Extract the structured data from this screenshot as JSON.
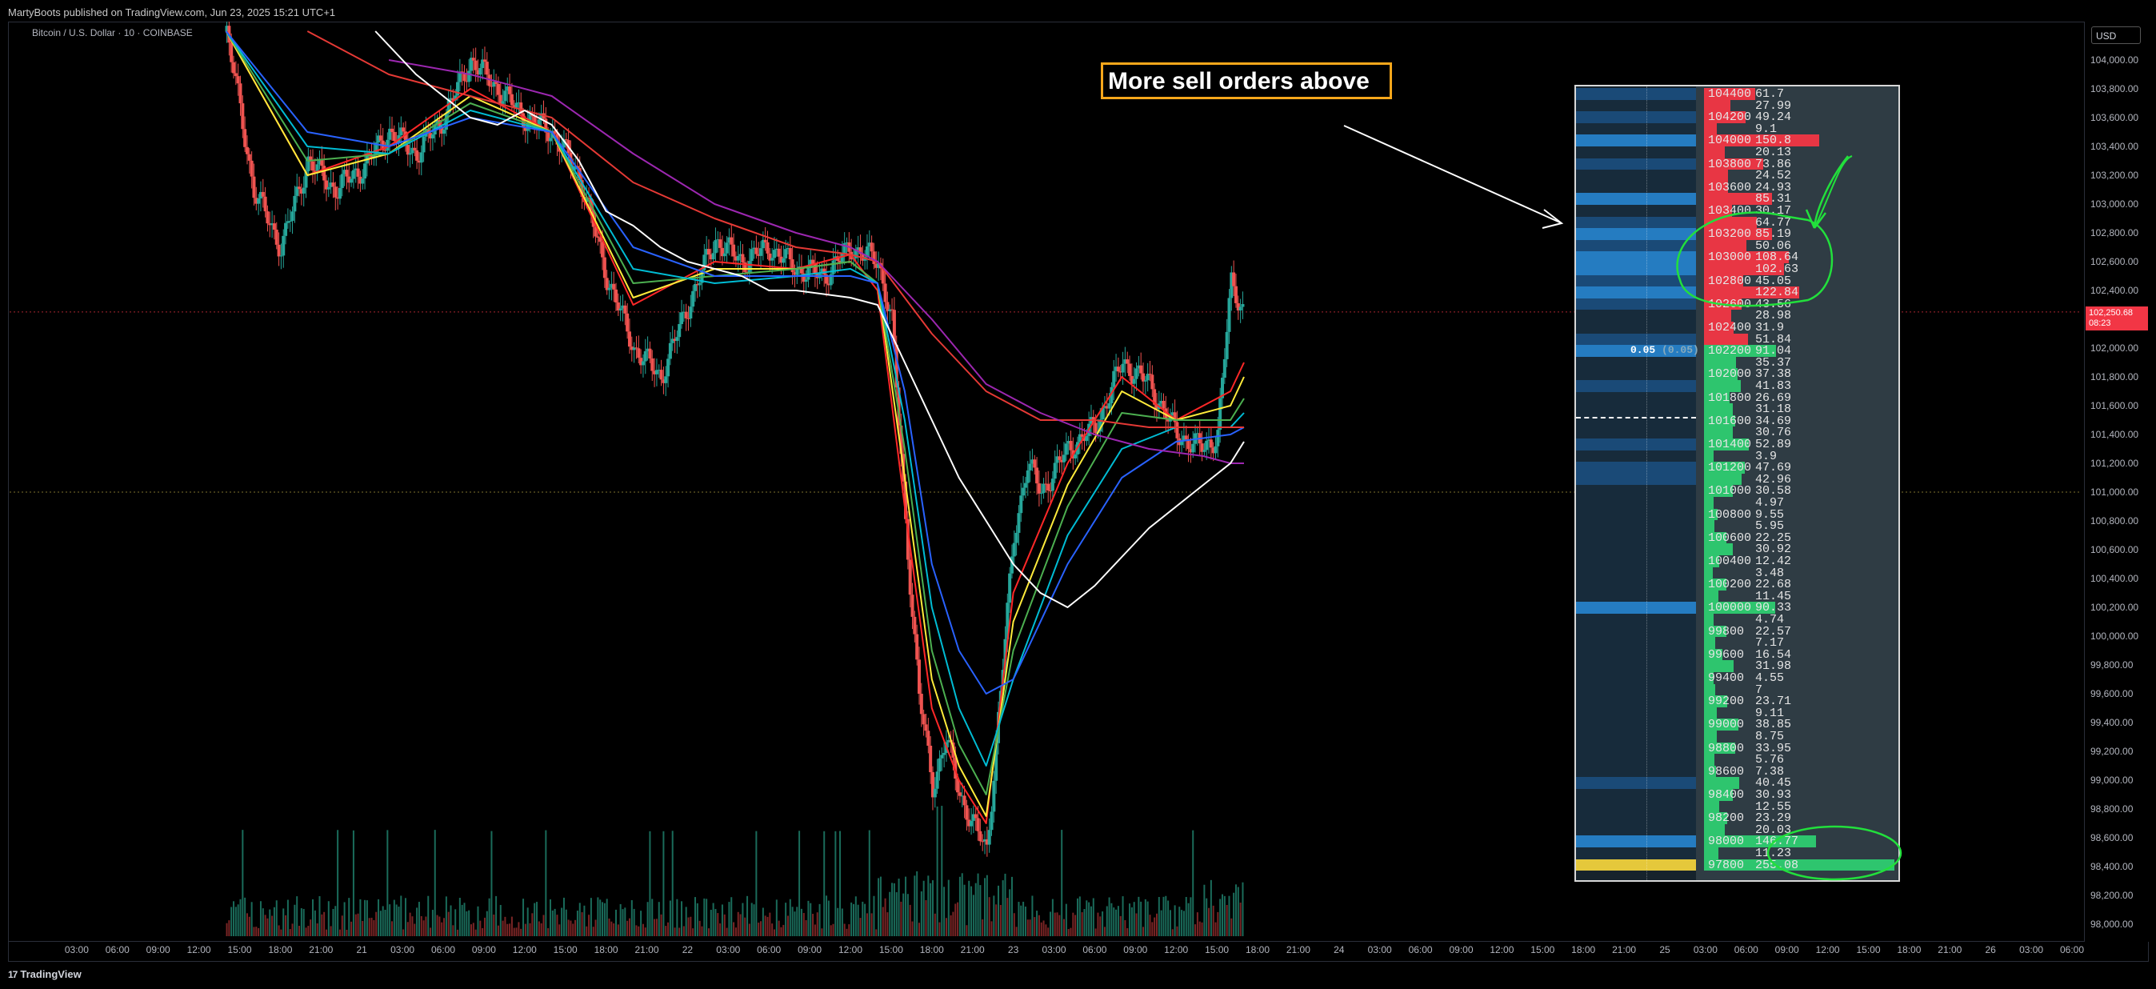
{
  "header": {
    "publisher": "MartyBoots published on TradingView.com, Jun 23, 2025 15:21 UTC+1"
  },
  "symbol": {
    "title": "Bitcoin / U.S. Dollar · 10 · COINBASE"
  },
  "price_axis": {
    "currency": "USD",
    "last_price": "102,250.68",
    "countdown": "08:23"
  },
  "callout": {
    "text": "More sell orders above"
  },
  "order_book": {
    "center_label": "0.05",
    "center_label_sub": "(0.05)",
    "rows": [
      {
        "price": "104400",
        "size": "61.7",
        "side": "ask"
      },
      {
        "price": "",
        "size": "27.99",
        "side": "ask"
      },
      {
        "price": "104200",
        "size": "49.24",
        "side": "ask"
      },
      {
        "price": "",
        "size": "9.1",
        "side": "ask"
      },
      {
        "price": "104000",
        "size": "150.8",
        "side": "ask"
      },
      {
        "price": "",
        "size": "20.13",
        "side": "ask"
      },
      {
        "price": "103800",
        "size": "73.86",
        "side": "ask"
      },
      {
        "price": "",
        "size": "24.52",
        "side": "ask"
      },
      {
        "price": "103600",
        "size": "24.93",
        "side": "ask"
      },
      {
        "price": "",
        "size": "85.31",
        "side": "ask"
      },
      {
        "price": "103400",
        "size": "30.17",
        "side": "ask"
      },
      {
        "price": "",
        "size": "64.77",
        "side": "ask"
      },
      {
        "price": "103200",
        "size": "85.19",
        "side": "ask"
      },
      {
        "price": "",
        "size": "50.06",
        "side": "ask"
      },
      {
        "price": "103000",
        "size": "108.64",
        "side": "ask"
      },
      {
        "price": "",
        "size": "102.63",
        "side": "ask"
      },
      {
        "price": "102800",
        "size": "45.05",
        "side": "ask"
      },
      {
        "price": "",
        "size": "122.84",
        "side": "ask"
      },
      {
        "price": "102600",
        "size": "43.56",
        "side": "ask"
      },
      {
        "price": "",
        "size": "28.98",
        "side": "ask"
      },
      {
        "price": "102400",
        "size": "31.9",
        "side": "ask"
      },
      {
        "price": "",
        "size": "51.84",
        "side": "ask"
      },
      {
        "price": "102200",
        "size": "91.04",
        "side": "bid"
      },
      {
        "price": "",
        "size": "35.37",
        "side": "bid"
      },
      {
        "price": "102000",
        "size": "37.38",
        "side": "bid"
      },
      {
        "price": "",
        "size": "41.83",
        "side": "bid"
      },
      {
        "price": "101800",
        "size": "26.69",
        "side": "bid"
      },
      {
        "price": "",
        "size": "31.18",
        "side": "bid"
      },
      {
        "price": "101600",
        "size": "34.69",
        "side": "bid"
      },
      {
        "price": "",
        "size": "30.76",
        "side": "bid"
      },
      {
        "price": "101400",
        "size": "52.89",
        "side": "bid"
      },
      {
        "price": "",
        "size": "3.9",
        "side": "bid"
      },
      {
        "price": "101200",
        "size": "47.69",
        "side": "bid"
      },
      {
        "price": "",
        "size": "42.96",
        "side": "bid"
      },
      {
        "price": "101000",
        "size": "30.58",
        "side": "bid"
      },
      {
        "price": "",
        "size": "4.97",
        "side": "bid"
      },
      {
        "price": "100800",
        "size": "9.55",
        "side": "bid"
      },
      {
        "price": "",
        "size": "5.95",
        "side": "bid"
      },
      {
        "price": "100600",
        "size": "22.25",
        "side": "bid"
      },
      {
        "price": "",
        "size": "30.92",
        "side": "bid"
      },
      {
        "price": "100400",
        "size": "12.42",
        "side": "bid"
      },
      {
        "price": "",
        "size": "3.48",
        "side": "bid"
      },
      {
        "price": "100200",
        "size": "22.68",
        "side": "bid"
      },
      {
        "price": "",
        "size": "11.45",
        "side": "bid"
      },
      {
        "price": "100000",
        "size": "90.33",
        "side": "bid"
      },
      {
        "price": "",
        "size": "4.74",
        "side": "bid"
      },
      {
        "price": "99800",
        "size": "22.57",
        "side": "bid"
      },
      {
        "price": "",
        "size": "7.17",
        "side": "bid"
      },
      {
        "price": "99600",
        "size": "16.54",
        "side": "bid"
      },
      {
        "price": "",
        "size": "31.98",
        "side": "bid"
      },
      {
        "price": "99400",
        "size": "4.55",
        "side": "bid"
      },
      {
        "price": "",
        "size": "7",
        "side": "bid"
      },
      {
        "price": "99200",
        "size": "23.71",
        "side": "bid"
      },
      {
        "price": "",
        "size": "9.11",
        "side": "bid"
      },
      {
        "price": "99000",
        "size": "38.85",
        "side": "bid"
      },
      {
        "price": "",
        "size": "8.75",
        "side": "bid"
      },
      {
        "price": "98800",
        "size": "33.95",
        "side": "bid"
      },
      {
        "price": "",
        "size": "5.76",
        "side": "bid"
      },
      {
        "price": "98600",
        "size": "7.38",
        "side": "bid"
      },
      {
        "price": "",
        "size": "40.45",
        "side": "bid"
      },
      {
        "price": "98400",
        "size": "30.93",
        "side": "bid"
      },
      {
        "price": "",
        "size": "12.55",
        "side": "bid"
      },
      {
        "price": "98200",
        "size": "23.29",
        "side": "bid"
      },
      {
        "price": "",
        "size": "20.03",
        "side": "bid"
      },
      {
        "price": "98000",
        "size": "146.77",
        "side": "bid"
      },
      {
        "price": "",
        "size": "11.23",
        "side": "bid"
      },
      {
        "price": "97800",
        "size": "255.08",
        "side": "bid"
      }
    ]
  },
  "chart_data": {
    "type": "line",
    "title": "Bitcoin / U.S. Dollar · 10 · COINBASE",
    "ylim": [
      97900,
      104200
    ],
    "ylabel": "",
    "xlabel": "",
    "y_ticks": [
      "104,000.00",
      "103,800.00",
      "103,600.00",
      "103,400.00",
      "103,200.00",
      "103,000.00",
      "102,800.00",
      "102,600.00",
      "102,400.00",
      "102,200.00",
      "102,000.00",
      "101,800.00",
      "101,600.00",
      "101,400.00",
      "101,200.00",
      "101,000.00",
      "100,800.00",
      "100,600.00",
      "100,400.00",
      "100,200.00",
      "100,000.00",
      "99,800.00",
      "99,600.00",
      "99,400.00",
      "99,200.00",
      "99,000.00",
      "98,800.00",
      "98,600.00",
      "98,400.00",
      "98,200.00",
      "98,000.00"
    ],
    "x_ticks": [
      "03:00",
      "06:00",
      "09:00",
      "12:00",
      "15:00",
      "18:00",
      "21:00",
      "21",
      "03:00",
      "06:00",
      "09:00",
      "12:00",
      "15:00",
      "18:00",
      "21:00",
      "22",
      "03:00",
      "06:00",
      "09:00",
      "12:00",
      "15:00",
      "18:00",
      "21:00",
      "23",
      "03:00",
      "06:00",
      "09:00",
      "12:00",
      "15:00",
      "18:00",
      "21:00",
      "24",
      "03:00",
      "06:00",
      "09:00",
      "12:00",
      "15:00",
      "18:00",
      "21:00",
      "25",
      "03:00",
      "06:00",
      "09:00",
      "12:00",
      "15:00",
      "18:00",
      "21:00",
      "26",
      "03:00",
      "06:00"
    ],
    "x_hours": [
      3,
      6,
      9,
      12,
      15,
      18,
      21,
      24,
      27,
      30,
      33,
      36,
      39,
      42,
      45,
      48,
      51,
      54,
      57,
      60,
      63,
      66,
      69,
      72,
      75,
      78,
      81,
      84,
      87,
      90,
      93,
      96,
      99,
      102,
      105,
      108,
      111,
      114,
      117,
      120,
      123,
      126,
      129,
      132,
      135,
      138,
      141,
      144,
      147,
      150
    ],
    "x_range_hours": [
      0,
      151.5
    ],
    "last_price": 102250.68,
    "horizontal_lines": [
      102250.68,
      101000
    ],
    "close_series": {
      "name": "",
      "x": [
        14,
        16,
        18,
        20,
        22,
        24,
        26,
        28,
        30,
        32,
        34,
        36,
        38,
        40,
        42,
        44,
        46,
        48,
        50,
        52,
        54,
        56,
        58,
        60,
        62,
        63,
        64,
        65,
        66,
        67,
        68,
        69,
        70,
        71,
        72,
        73,
        74,
        75,
        76,
        78,
        80,
        82,
        84,
        86,
        87,
        88,
        89
      ],
      "y": [
        104200,
        103100,
        102700,
        103300,
        103100,
        103250,
        103500,
        103350,
        103600,
        104000,
        103800,
        103600,
        103500,
        103200,
        102500,
        102000,
        101800,
        102300,
        102750,
        102600,
        102700,
        102550,
        102500,
        102700,
        102600,
        102200,
        100800,
        99600,
        98950,
        99300,
        98900,
        98700,
        98500,
        99600,
        100700,
        101200,
        101000,
        101150,
        101300,
        101450,
        101900,
        101750,
        101400,
        101300,
        101400,
        102450,
        102250
      ]
    },
    "ma_series": [
      {
        "name": "",
        "color": "#ff2828",
        "x": [
          14,
          20,
          26,
          32,
          38,
          44,
          50,
          56,
          60,
          62,
          64,
          66,
          68,
          70,
          72,
          76,
          80,
          84,
          88,
          89
        ],
        "y": [
          104200,
          103200,
          103400,
          103800,
          103500,
          102300,
          102600,
          102550,
          102650,
          102400,
          100900,
          99500,
          99000,
          98700,
          100300,
          101200,
          101800,
          101500,
          101700,
          101900
        ]
      },
      {
        "name": "",
        "color": "#ffeb3b",
        "x": [
          14,
          20,
          26,
          32,
          38,
          44,
          50,
          56,
          60,
          62,
          64,
          66,
          68,
          70,
          72,
          76,
          80,
          84,
          88,
          89
        ],
        "y": [
          104200,
          103200,
          103350,
          103750,
          103500,
          102350,
          102550,
          102550,
          102600,
          102450,
          101100,
          99700,
          99100,
          98750,
          100100,
          101050,
          101700,
          101500,
          101600,
          101800
        ]
      },
      {
        "name": "",
        "color": "#4caf50",
        "x": [
          14,
          20,
          26,
          32,
          38,
          44,
          50,
          56,
          60,
          62,
          64,
          66,
          68,
          70,
          72,
          76,
          80,
          84,
          88,
          89
        ],
        "y": [
          104200,
          103300,
          103350,
          103700,
          103500,
          102450,
          102500,
          102550,
          102600,
          102450,
          101300,
          99900,
          99250,
          98900,
          99900,
          100900,
          101550,
          101500,
          101500,
          101650
        ]
      },
      {
        "name": "",
        "color": "#00bcd4",
        "x": [
          14,
          20,
          26,
          32,
          38,
          44,
          50,
          56,
          60,
          62,
          64,
          66,
          68,
          70,
          72,
          76,
          80,
          84,
          88,
          89
        ],
        "y": [
          104200,
          103400,
          103350,
          103650,
          103500,
          102550,
          102450,
          102500,
          102550,
          102450,
          101500,
          100200,
          99500,
          99100,
          99700,
          100700,
          101300,
          101450,
          101450,
          101550
        ]
      },
      {
        "name": "",
        "color": "#2962ff",
        "x": [
          14,
          20,
          26,
          32,
          38,
          44,
          50,
          56,
          60,
          62,
          64,
          66,
          68,
          70,
          72,
          76,
          80,
          84,
          88,
          89
        ],
        "y": [
          104200,
          103500,
          103400,
          103600,
          103500,
          102700,
          102500,
          102500,
          102500,
          102450,
          101700,
          100500,
          99900,
          99600,
          99700,
          100500,
          101100,
          101350,
          101400,
          101450
        ]
      },
      {
        "name": "",
        "color": "#e53935",
        "x": [
          20,
          26,
          32,
          38,
          44,
          50,
          56,
          60,
          62,
          66,
          70,
          74,
          78,
          82,
          86,
          88,
          89
        ],
        "y": [
          104200,
          103900,
          103750,
          103600,
          103150,
          102900,
          102700,
          102650,
          102600,
          102100,
          101700,
          101500,
          101500,
          101450,
          101450,
          101450,
          101450
        ]
      },
      {
        "name": "",
        "color": "#9c27b0",
        "x": [
          26,
          32,
          38,
          44,
          50,
          56,
          60,
          62,
          66,
          70,
          74,
          78,
          82,
          86,
          88,
          89
        ],
        "y": [
          104000,
          103900,
          103750,
          103350,
          103000,
          102800,
          102700,
          102600,
          102200,
          101750,
          101550,
          101400,
          101300,
          101250,
          101200,
          101200
        ]
      },
      {
        "name": "",
        "color": "#ffffff",
        "x": [
          25,
          28,
          32,
          34,
          36,
          38,
          40,
          42,
          44,
          46,
          48,
          50,
          52,
          54,
          56,
          60,
          62,
          64,
          66,
          68,
          70,
          72,
          74,
          76,
          78,
          80,
          82,
          84,
          86,
          88,
          89
        ],
        "y": [
          104200,
          103900,
          103600,
          103550,
          103650,
          103550,
          103300,
          102950,
          102850,
          102700,
          102600,
          102550,
          102500,
          102400,
          102400,
          102350,
          102300,
          101900,
          101500,
          101100,
          100800,
          100500,
          100300,
          100200,
          100350,
          100550,
          100750,
          100900,
          101050,
          101200,
          101350
        ]
      }
    ],
    "volume": {
      "name": "",
      "color_up": "#1a6b5a",
      "color_down": "#7a2525"
    }
  }
}
